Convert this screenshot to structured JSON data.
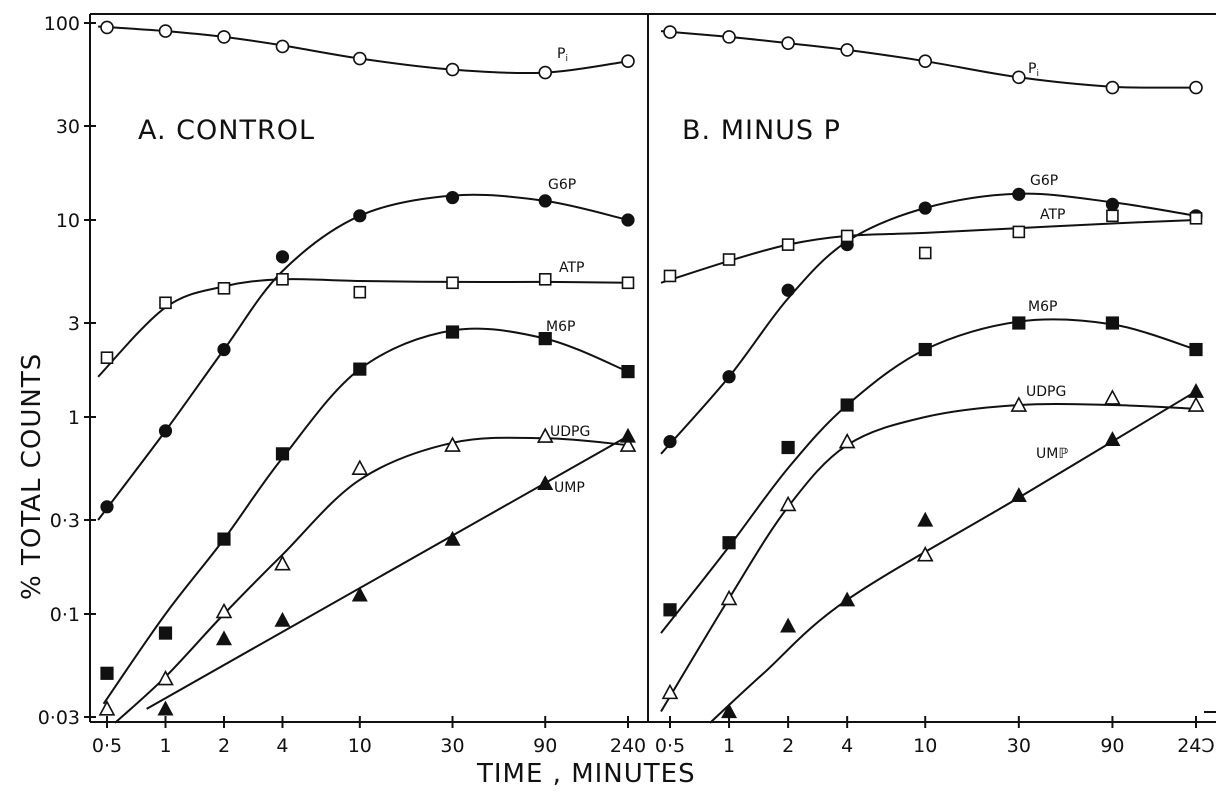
{
  "chart_data": [
    {
      "type": "line",
      "title": "A. CONTROL",
      "xlabel": "TIME , MINUTES",
      "ylabel": "% TOTAL COUNTS",
      "x_scale": "log",
      "y_scale": "log",
      "xlim": [
        0.45,
        260
      ],
      "ylim": [
        0.03,
        100
      ],
      "x_ticks": [
        0.5,
        1,
        2,
        4,
        10,
        30,
        90,
        240
      ],
      "x_tick_labels": [
        "0·5",
        "1",
        "2",
        "4",
        "10",
        "30",
        "90",
        "240"
      ],
      "y_ticks": [
        0.03,
        0.1,
        0.3,
        1,
        3,
        10,
        30,
        100
      ],
      "y_tick_labels": [
        "0·03",
        "0·1",
        "0·3",
        "1",
        "3",
        "10",
        "30",
        "100"
      ],
      "series": [
        {
          "name": "Pi",
          "marker": "open-circle",
          "x": [
            0.5,
            1,
            2,
            4,
            10,
            30,
            90,
            240
          ],
          "y": [
            95,
            91,
            85,
            76,
            66,
            58,
            56,
            64
          ],
          "curve": [
            [
              0.45,
              96
            ],
            [
              1,
              91
            ],
            [
              2,
              85
            ],
            [
              4,
              77
            ],
            [
              10,
              66
            ],
            [
              30,
              58
            ],
            [
              90,
              56
            ],
            [
              240,
              64
            ]
          ]
        },
        {
          "name": "G6P",
          "marker": "filled-circle",
          "x": [
            0.5,
            1,
            2,
            4,
            10,
            30,
            90,
            240
          ],
          "y": [
            0.35,
            0.85,
            2.2,
            6.5,
            10.5,
            13,
            12.5,
            10
          ],
          "curve": [
            [
              0.45,
              0.3
            ],
            [
              1,
              0.85
            ],
            [
              2,
              2.2
            ],
            [
              4,
              5.5
            ],
            [
              10,
              10.5
            ],
            [
              30,
              13.3
            ],
            [
              90,
              12.5
            ],
            [
              240,
              10
            ]
          ]
        },
        {
          "name": "ATP",
          "marker": "open-square",
          "x": [
            0.5,
            1,
            2,
            4,
            10,
            30,
            90,
            240
          ],
          "y": [
            2,
            3.8,
            4.5,
            5,
            4.3,
            4.8,
            5,
            4.8
          ],
          "curve": [
            [
              0.45,
              1.6
            ],
            [
              1,
              3.6
            ],
            [
              2,
              4.6
            ],
            [
              4,
              5
            ],
            [
              10,
              4.9
            ],
            [
              30,
              4.85
            ],
            [
              90,
              4.85
            ],
            [
              240,
              4.8
            ]
          ]
        },
        {
          "name": "M6P",
          "marker": "filled-square",
          "x": [
            0.5,
            1,
            2,
            4,
            10,
            30,
            90,
            240
          ],
          "y": [
            0.05,
            0.08,
            0.24,
            0.65,
            1.75,
            2.7,
            2.5,
            1.7
          ],
          "curve": [
            [
              0.48,
              0.035
            ],
            [
              1,
              0.1
            ],
            [
              2,
              0.24
            ],
            [
              4,
              0.62
            ],
            [
              10,
              1.75
            ],
            [
              30,
              2.75
            ],
            [
              90,
              2.5
            ],
            [
              240,
              1.7
            ]
          ]
        },
        {
          "name": "UDPG",
          "marker": "open-triangle",
          "x": [
            0.5,
            1,
            2,
            4,
            10,
            30,
            90,
            240
          ],
          "y": [
            0.033,
            0.047,
            0.103,
            0.18,
            0.55,
            0.72,
            0.8,
            0.72
          ],
          "curve": [
            [
              0.55,
              0.028
            ],
            [
              1,
              0.048
            ],
            [
              2,
              0.1
            ],
            [
              4,
              0.2
            ],
            [
              10,
              0.48
            ],
            [
              30,
              0.74
            ],
            [
              90,
              0.78
            ],
            [
              240,
              0.72
            ]
          ]
        },
        {
          "name": "UMP",
          "marker": "filled-triangle",
          "x": [
            1,
            2,
            4,
            10,
            30,
            90,
            240
          ],
          "y": [
            0.033,
            0.075,
            0.093,
            0.125,
            0.24,
            0.46,
            0.8
          ],
          "curve": [
            [
              0.8,
              0.033
            ],
            [
              240,
              0.8
            ]
          ]
        }
      ]
    },
    {
      "type": "line",
      "title": "B. MINUS P",
      "xlabel": "TIME , MINUTES",
      "ylabel": "% TOTAL COUNTS",
      "x_scale": "log",
      "y_scale": "log",
      "xlim": [
        0.45,
        260
      ],
      "ylim": [
        0.03,
        100
      ],
      "x_ticks": [
        0.5,
        1,
        2,
        4,
        10,
        30,
        90,
        240
      ],
      "x_tick_labels": [
        "0·5",
        "1",
        "2",
        "4",
        "10",
        "30",
        "90",
        "24Ɔ"
      ],
      "series": [
        {
          "name": "Pi",
          "marker": "open-circle",
          "x": [
            0.5,
            1,
            2,
            4,
            10,
            30,
            90,
            240
          ],
          "y": [
            90,
            85,
            79,
            73,
            64,
            53,
            47,
            47
          ],
          "curve": [
            [
              0.45,
              91
            ],
            [
              1,
              85
            ],
            [
              2,
              79
            ],
            [
              4,
              73
            ],
            [
              10,
              64
            ],
            [
              30,
              53
            ],
            [
              90,
              47.5
            ],
            [
              240,
              47
            ]
          ]
        },
        {
          "name": "G6P",
          "marker": "filled-circle",
          "x": [
            0.5,
            1,
            2,
            4,
            10,
            30,
            90,
            240
          ],
          "y": [
            0.75,
            1.6,
            4.4,
            7.5,
            11.5,
            13.5,
            12,
            10.5
          ],
          "curve": [
            [
              0.45,
              0.65
            ],
            [
              1,
              1.6
            ],
            [
              2,
              4
            ],
            [
              4,
              7.8
            ],
            [
              10,
              11.5
            ],
            [
              30,
              13.6
            ],
            [
              90,
              12.3
            ],
            [
              240,
              10.5
            ]
          ]
        },
        {
          "name": "ATP",
          "marker": "open-square",
          "x": [
            0.5,
            1,
            2,
            4,
            10,
            30,
            90,
            240
          ],
          "y": [
            5.2,
            6.3,
            7.5,
            8.3,
            6.8,
            8.7,
            10.5,
            10.2
          ],
          "curve": [
            [
              0.45,
              4.8
            ],
            [
              1,
              6.2
            ],
            [
              2,
              7.5
            ],
            [
              4,
              8.3
            ],
            [
              10,
              8.6
            ],
            [
              30,
              9.1
            ],
            [
              90,
              9.6
            ],
            [
              240,
              10
            ]
          ]
        },
        {
          "name": "M6P",
          "marker": "filled-square",
          "x": [
            0.5,
            1,
            2,
            4,
            10,
            30,
            90,
            240
          ],
          "y": [
            0.105,
            0.23,
            0.7,
            1.15,
            2.2,
            3,
            3,
            2.2
          ],
          "curve": [
            [
              0.45,
              0.08
            ],
            [
              1,
              0.22
            ],
            [
              2,
              0.55
            ],
            [
              4,
              1.15
            ],
            [
              10,
              2.2
            ],
            [
              30,
              3.05
            ],
            [
              90,
              2.95
            ],
            [
              240,
              2.2
            ]
          ]
        },
        {
          "name": "UDPG",
          "marker": "open-triangle",
          "x": [
            0.5,
            1,
            2,
            4,
            10,
            30,
            90,
            240
          ],
          "y": [
            0.04,
            0.12,
            0.36,
            0.75,
            0.2,
            1.15,
            1.25,
            1.15
          ],
          "curve": [
            [
              0.45,
              0.032
            ],
            [
              1,
              0.12
            ],
            [
              2,
              0.35
            ],
            [
              4,
              0.72
            ],
            [
              10,
              1
            ],
            [
              30,
              1.15
            ],
            [
              90,
              1.15
            ],
            [
              240,
              1.1
            ]
          ]
        },
        {
          "name": "UMP",
          "marker": "filled-triangle",
          "x": [
            1,
            2,
            4,
            10,
            30,
            90,
            240
          ],
          "y": [
            0.032,
            0.087,
            0.118,
            0.3,
            0.4,
            0.77,
            1.35
          ],
          "curve": [
            [
              0.8,
              0.028
            ],
            [
              1.5,
              0.05
            ],
            [
              4,
              0.118
            ],
            [
              30,
              0.39
            ],
            [
              240,
              1.35
            ]
          ]
        }
      ]
    }
  ],
  "labels": {
    "pi": "P",
    "pi_sub": "i",
    "g6p": "G6P",
    "atp": "ATP",
    "m6p": "M6P",
    "udpg": "UDPG",
    "ump_a": "UMP",
    "ump_b": "UMℙ"
  }
}
